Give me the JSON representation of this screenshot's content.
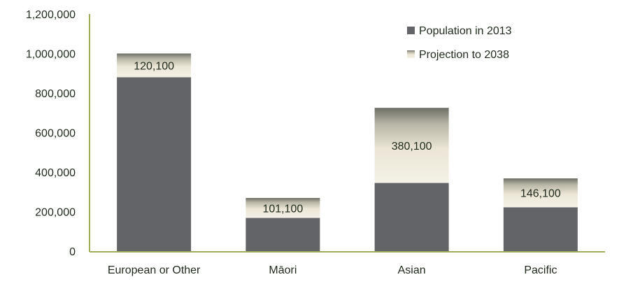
{
  "chart_data": {
    "type": "bar",
    "stacked": true,
    "categories": [
      "European or Other",
      "Māori",
      "Asian",
      "Pacific"
    ],
    "series": [
      {
        "name": "Population in 2013",
        "values": [
          880000,
          168000,
          345000,
          222000
        ],
        "color": "#636467"
      },
      {
        "name": "Projection to 2038",
        "values": [
          120100,
          101100,
          380100,
          146100
        ],
        "color": "#ebe6d6",
        "gradient_top": "#6d6e66",
        "labels": [
          "120,100",
          "101,100",
          "380,100",
          "146,100"
        ]
      }
    ],
    "ylim": [
      0,
      1200000
    ],
    "yticks": [
      0,
      200000,
      400000,
      600000,
      800000,
      1000000,
      1200000
    ],
    "ytick_labels": [
      "0",
      "200,000",
      "400,000",
      "600,000",
      "800,000",
      "1,000,000",
      "1,200,000"
    ],
    "grid": false,
    "legend": "top-right",
    "axis_color": "#9aae5e",
    "title": "",
    "xlabel": "",
    "ylabel": ""
  }
}
